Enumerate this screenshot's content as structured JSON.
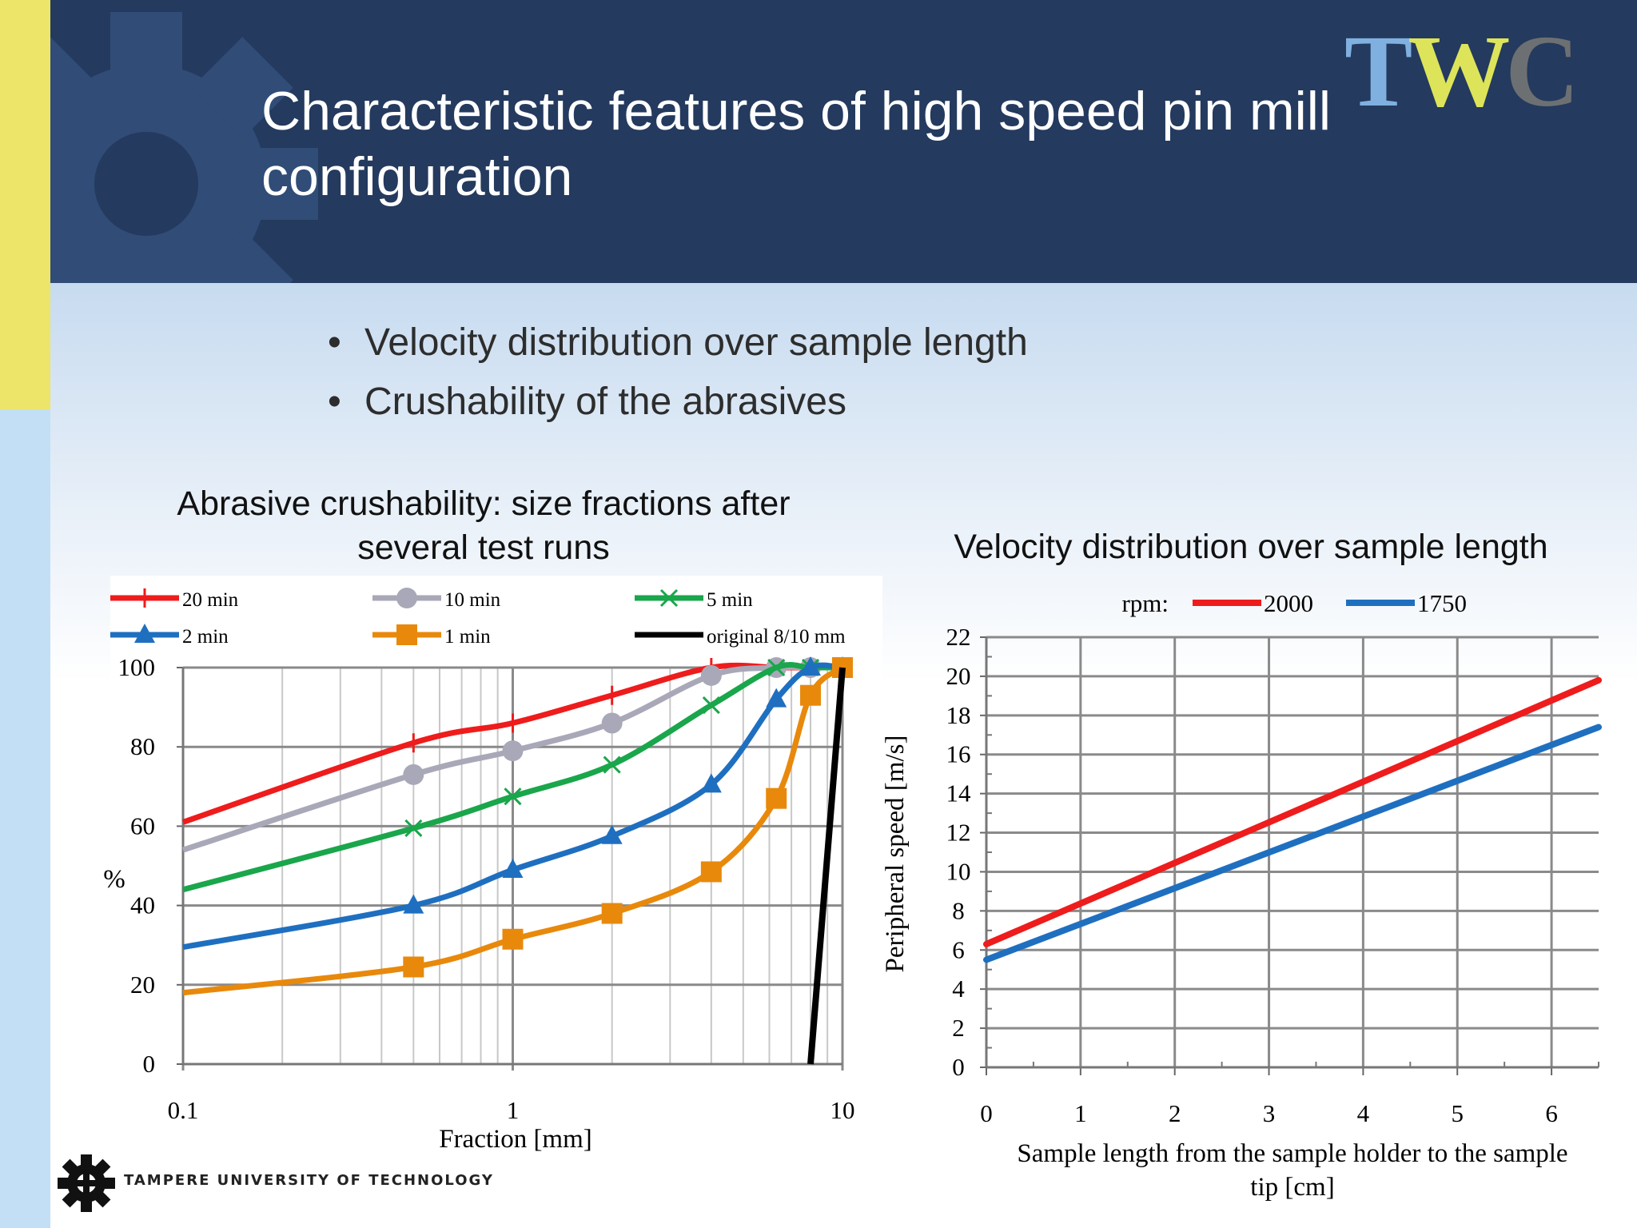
{
  "slide": {
    "title": "Characteristic features of high speed pin mill configuration",
    "logo": {
      "letters": [
        "T",
        "W",
        "C"
      ],
      "colors": [
        "#7fb0e0",
        "#dde45a",
        "#6d7072"
      ]
    },
    "bullets": [
      "Velocity distribution over sample length",
      "Crushability of the abrasives"
    ],
    "footer": {
      "university": "TAMPERE UNIVERSITY OF TECHNOLOGY",
      "icon": "gear-logo-icon"
    },
    "colors": {
      "header": "#243a5e",
      "yellow_bar": "#ece56a",
      "blue_bar": "#c3dff5"
    }
  },
  "chart_data": [
    {
      "type": "line",
      "title": "Abrasive crushability: size fractions after several test runs",
      "xlabel": "Fraction [mm]",
      "ylabel": "%",
      "xscale": "log",
      "xlim": [
        0.1,
        10
      ],
      "ylim": [
        0,
        100
      ],
      "xticks": [
        "0.1",
        "1",
        "10"
      ],
      "yticks": [
        "0",
        "20",
        "40",
        "60",
        "80",
        "100"
      ],
      "grid": "on (log minor gridlines)",
      "legend_position": "top",
      "series": [
        {
          "name": "20 min",
          "color": "#ee1c1c",
          "marker": "plus",
          "x": [
            0.1,
            0.5,
            1,
            2,
            4,
            6.3,
            8,
            10
          ],
          "y": [
            61,
            81,
            86,
            93,
            100,
            100,
            100,
            100
          ]
        },
        {
          "name": "10 min",
          "color": "#a8a8b8",
          "marker": "circle",
          "x": [
            0.1,
            0.5,
            1,
            2,
            4,
            6.3,
            8,
            10
          ],
          "y": [
            54,
            73,
            79,
            86,
            98,
            100,
            100,
            100
          ]
        },
        {
          "name": "5 min",
          "color": "#1aa64b",
          "marker": "x",
          "x": [
            0.1,
            0.5,
            1,
            2,
            4,
            6.3,
            8,
            10
          ],
          "y": [
            44,
            59.5,
            67.5,
            75.5,
            90.5,
            100,
            100,
            100
          ]
        },
        {
          "name": "2 min",
          "color": "#1f6fc0",
          "marker": "triangle",
          "x": [
            0.1,
            0.5,
            1,
            2,
            4,
            6.3,
            8,
            10
          ],
          "y": [
            29.5,
            40,
            49,
            57.5,
            70.5,
            92,
            100,
            100
          ]
        },
        {
          "name": "1 min",
          "color": "#e8890c",
          "marker": "square",
          "x": [
            0.1,
            0.5,
            1,
            2,
            4,
            6.3,
            8,
            10
          ],
          "y": [
            18,
            24.5,
            31.5,
            38,
            48.5,
            67,
            93,
            100
          ]
        },
        {
          "name": "original 8/10 mm",
          "color": "#000000",
          "marker": "none",
          "x": [
            8,
            10
          ],
          "y": [
            0,
            100
          ]
        }
      ]
    },
    {
      "type": "line",
      "title": "Velocity distribution over sample length",
      "xlabel": "Sample length from the sample holder to the sample tip [cm]",
      "ylabel": "Peripheral speed [m/s]",
      "xlim": [
        0,
        6.5
      ],
      "ylim": [
        0,
        22
      ],
      "xticks": [
        "0",
        "1",
        "2",
        "3",
        "4",
        "5",
        "6"
      ],
      "yticks": [
        "0",
        "2",
        "4",
        "6",
        "8",
        "10",
        "12",
        "14",
        "16",
        "18",
        "20",
        "22"
      ],
      "grid": "on",
      "legend_title": "rpm:",
      "legend_position": "top",
      "series": [
        {
          "name": "2000",
          "color": "#ee1c1c",
          "x": [
            0,
            6.5
          ],
          "y": [
            6.3,
            19.8
          ]
        },
        {
          "name": "1750",
          "color": "#1f6fc0",
          "x": [
            0,
            6.5
          ],
          "y": [
            5.5,
            17.4
          ]
        }
      ]
    }
  ]
}
